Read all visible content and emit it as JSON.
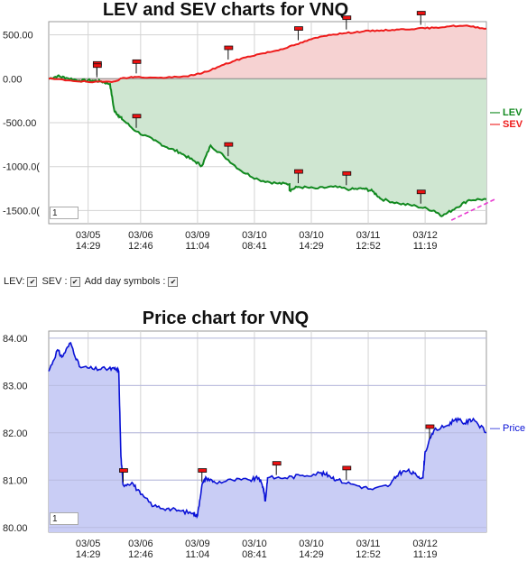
{
  "controls": {
    "lev_label": "LEV:",
    "sev_label": "SEV :",
    "day_symbols_label": "Add day symbols :",
    "lev_checked": true,
    "sev_checked": true,
    "day_symbols_checked": true
  },
  "chart_data": [
    {
      "type": "line",
      "title": "LEV and SEV charts for VNQ",
      "ylim": [
        -1650,
        650
      ],
      "yticks": [
        500,
        0,
        -500,
        -1000,
        -1500
      ],
      "ytick_labels": [
        "500.00",
        "0.00",
        "-500.00",
        "-1000.0(",
        "-1500.0("
      ],
      "x_labels": [
        [
          "03/05",
          "14:29"
        ],
        [
          "03/06",
          "12:46"
        ],
        [
          "03/09",
          "11:04"
        ],
        [
          "03/10",
          "08:41"
        ],
        [
          "03/10",
          "14:29"
        ],
        [
          "03/11",
          "12:52"
        ],
        [
          "03/12",
          "11:19"
        ]
      ],
      "x_tick_positions": [
        0.09,
        0.21,
        0.34,
        0.47,
        0.6,
        0.73,
        0.86
      ],
      "day_marks": [
        0.11,
        0.2,
        0.41,
        0.57,
        0.68,
        0.85
      ],
      "page_input": "1",
      "series": [
        {
          "name": "LEV",
          "color": "#11891f",
          "x": [
            0,
            0.02,
            0.04,
            0.07,
            0.1,
            0.12,
            0.14,
            0.15,
            0.16,
            0.17,
            0.2,
            0.24,
            0.27,
            0.3,
            0.33,
            0.35,
            0.37,
            0.4,
            0.44,
            0.48,
            0.52,
            0.55,
            0.55,
            0.57,
            0.61,
            0.65,
            0.69,
            0.72,
            0.74,
            0.76,
            0.8,
            0.84,
            0.88,
            0.9,
            0.93,
            0.96,
            1.0
          ],
          "y": [
            0,
            30,
            10,
            -20,
            -20,
            -30,
            -60,
            -370,
            -420,
            -470,
            -600,
            -700,
            -780,
            -840,
            -930,
            -990,
            -760,
            -880,
            -1050,
            -1150,
            -1190,
            -1200,
            -1270,
            -1230,
            -1250,
            -1230,
            -1260,
            -1250,
            -1280,
            -1370,
            -1420,
            -1450,
            -1500,
            -1560,
            -1470,
            -1380,
            -1370
          ]
        },
        {
          "name": "SEV",
          "color": "#ee1b1b",
          "x": [
            0,
            0.05,
            0.1,
            0.15,
            0.17,
            0.2,
            0.25,
            0.3,
            0.33,
            0.36,
            0.4,
            0.44,
            0.48,
            0.52,
            0.56,
            0.6,
            0.64,
            0.68,
            0.72,
            0.76,
            0.8,
            0.84,
            0.88,
            0.92,
            0.96,
            1.0
          ],
          "y": [
            0,
            -20,
            -40,
            -30,
            10,
            20,
            10,
            20,
            40,
            80,
            160,
            230,
            280,
            320,
            380,
            450,
            500,
            520,
            540,
            550,
            560,
            570,
            580,
            600,
            600,
            570
          ]
        }
      ]
    },
    {
      "type": "area",
      "title": "Price chart for VNQ",
      "ylim": [
        79.9,
        84.15
      ],
      "yticks": [
        84,
        83,
        82,
        81,
        80
      ],
      "ytick_labels": [
        "84.00",
        "83.00",
        "82.00",
        "81.00",
        "80.00"
      ],
      "x_labels": [
        [
          "03/05",
          "14:29"
        ],
        [
          "03/06",
          "12:46"
        ],
        [
          "03/09",
          "11:04"
        ],
        [
          "03/10",
          "08:41"
        ],
        [
          "03/10",
          "14:29"
        ],
        [
          "03/11",
          "12:52"
        ],
        [
          "03/12",
          "11:19"
        ]
      ],
      "x_tick_positions": [
        0.09,
        0.21,
        0.34,
        0.47,
        0.6,
        0.73,
        0.86
      ],
      "day_marks": [
        0.17,
        0.35,
        0.52,
        0.68,
        0.87
      ],
      "page_input": "1",
      "series": [
        {
          "name": "Price",
          "color": "#0a12d6",
          "x": [
            0,
            0.02,
            0.03,
            0.05,
            0.07,
            0.1,
            0.13,
            0.15,
            0.16,
            0.165,
            0.17,
            0.19,
            0.21,
            0.24,
            0.27,
            0.3,
            0.33,
            0.34,
            0.35,
            0.36,
            0.38,
            0.42,
            0.46,
            0.48,
            0.49,
            0.495,
            0.5,
            0.54,
            0.58,
            0.62,
            0.64,
            0.66,
            0.7,
            0.74,
            0.78,
            0.8,
            0.82,
            0.84,
            0.855,
            0.86,
            0.88,
            0.91,
            0.93,
            0.95,
            0.97,
            1.0
          ],
          "y": [
            83.3,
            83.75,
            83.6,
            83.9,
            83.4,
            83.35,
            83.35,
            83.35,
            83.3,
            81.5,
            80.9,
            80.95,
            80.7,
            80.45,
            80.4,
            80.35,
            80.3,
            80.25,
            80.9,
            81.05,
            80.95,
            81.0,
            81.0,
            81.05,
            80.85,
            80.55,
            81.05,
            81.05,
            81.1,
            81.15,
            81.1,
            81.0,
            80.9,
            80.8,
            80.9,
            81.15,
            81.2,
            81.1,
            81.05,
            81.6,
            82.05,
            82.15,
            82.3,
            82.2,
            82.3,
            82.0
          ]
        }
      ]
    }
  ]
}
